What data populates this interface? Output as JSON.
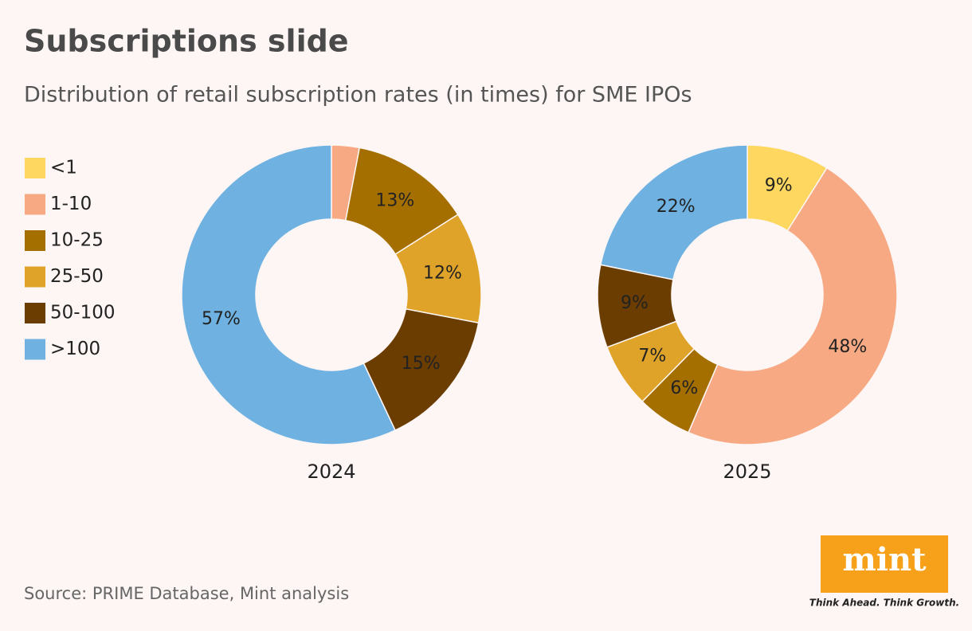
{
  "title": "Subscriptions slide",
  "subtitle": "Distribution of retail subscription rates (in times) for SME IPOs",
  "source": "Source: PRIME Database, Mint analysis",
  "logo": "mint",
  "tagline": "Think Ahead. Think Growth.",
  "chart_data": [
    {
      "type": "donut",
      "label": "2024",
      "categories": [
        "<1",
        "1-10",
        "10-25",
        "25-50",
        "50-100",
        ">100"
      ],
      "colors": [
        "#fdd75f",
        "#f7a983",
        "#a56f00",
        "#e0a32a",
        "#6b3d00",
        "#6fb2e2"
      ],
      "values": [
        0,
        3,
        13,
        12,
        15,
        57
      ],
      "value_labels": [
        null,
        null,
        "13%",
        "12%",
        "15%",
        "57%"
      ]
    },
    {
      "type": "donut",
      "label": "2025",
      "categories": [
        "<1",
        "1-10",
        "10-25",
        "25-50",
        "50-100",
        ">100"
      ],
      "colors": [
        "#fdd75f",
        "#f7a983",
        "#a56f00",
        "#e0a32a",
        "#6b3d00",
        "#6fb2e2"
      ],
      "values": [
        9,
        48,
        6,
        7,
        9,
        22
      ],
      "value_labels": [
        "9%",
        "48%",
        "6%",
        "7%",
        "9%",
        "22%"
      ]
    }
  ]
}
